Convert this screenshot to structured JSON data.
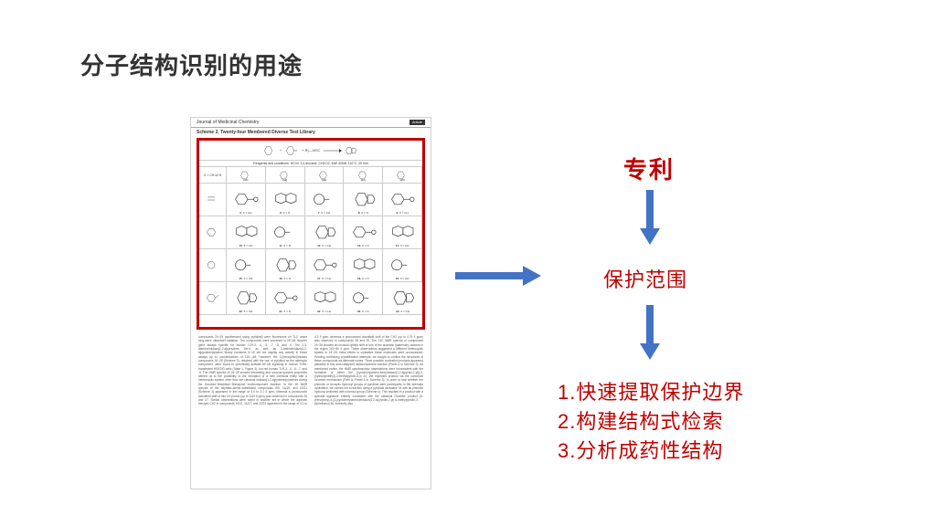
{
  "title": "分子结构识别的用途",
  "paper": {
    "journal": "Journal of Medicinal Chemistry",
    "scheme_title": "Scheme 2. Twenty-four Membered Diverse Test Library",
    "conditions": "Reagents and conditions: HCl in 1,4-dioxane, CH2Cl2, MW 400W, 110°C, 20 min",
    "highlight_border_color": "#c00000",
    "header_row_labels": [
      "",
      "[a1]",
      "[a2]",
      "[a3]",
      "[a4]",
      "[a5]"
    ],
    "row_count": 4,
    "col_count": 6,
    "filler_text": "compounds 24−28 (synthesized using pyridinal) were fluorescent on TLC under long-wave ultraviolet radiation. The compounds were screened in NF-κB reporter gene assays specific for human TLR-3, -4, -5, -7, -8, and -9. The 2,3-diaminoimidazo[1,2-a]pyrazines 5a−d as well as 5-aminoimidazo[1,2-a]pyridine/pyrazine library members 6−15 did not display any activity in these assays up to concentrations of 100 μM. However, the 2-(benzylthio)imidazo compounds 16−28 (Scheme 3), obtained with the use of pyridinal as the aldehyde component, were found to specifically activate NF-κB signaling in human TLR8-transfected HEK293 cells (Table 1, Figure 3), but not human TLR-3, -4, -5, -7, and -9. The NMR spectra of 16−28 showed interesting and unusual spectral properties alerted us to the possibility of the formation of a new chemical entity with a heterocyclic system other than the classical imidazo[1,2-a]pyridine/pyrazines during the Groebke−Blackburn−Bienaymé multicomponent reaction. In the 1H NMR spectra of the aliphatic-amine-substituted compounds 8/9, 14/15, and 20/21 (Scheme 2) appeared in the range of 3.0 to 3.1 δ ppm, whereas a pronounced downfield shift of this CH proton (up to 3.83 δ ppm) was observed in compounds 26 and 27. Similar observations were noted in another set in which the aliphatic benzylic CH2 in compounds 10/11, 16/17, and 22/23 appeared in the range of 4.2 to 4.3 δ ppm, whereas a pronounced downfield shift of the CH2 (up to 4.76 δ ppm) was observed in compounds 28 and 29. The 13C NMR spectra of compounds 24−28 showed an unusual upfield shift of one of the aromatic quaternary carbons in the region 100−80 δ ppm. These observations suggested a different heterocyclic system in 24−28. Initial efforts to crystallize these molecules were unsuccessful. Pending continuing crystallization attempts, we sought to confirm the structures of these compounds via alternate routes. Three possible cyclization products appeared plausible in this acid-catalyzed multicomponent reaction (Panel A in Scheme 3). As mentioned earlier, the NMR spectroscopic observations were inconsistent with the formation of either the [cyclohexylamino-furo(imidazo[1,2-a]pyrido-2-yl)]-3-(hydroxymethyl)-2-methylpyridin-3-ol 32, the expected product via the canonical Groebke mechanism (Path A, Panel A in Scheme 3). In order to test whether the phenolic or benzylic hydroxyl groups of pyridinal were participants in the alternate cyclization, we carried out a reaction using a pyridinal derivative 34 with its phenolic hydroxyl protected with a benzyl group (Scheme 4). This resulted in a product with a spectral signature entirely consistent with the classical Groebke product (5-(benzyloxy)-4-(3-(cyclohexylamino)imidazo[1,2-a]-pyridin-2-yl)-6-methylpyridin-3-yl)methanol 36, indirectly also"
  },
  "flow": {
    "arrow_color": "#4472c4",
    "patent_label": "专利",
    "scope_label": "保护范围",
    "list_items": [
      "1.快速提取保护边界",
      "2.构建结构式检索",
      "3.分析成药性结构"
    ]
  },
  "colors": {
    "title_color": "#333333",
    "accent_red": "#c00000",
    "arrow_blue": "#4472c4",
    "background": "#ffffff"
  }
}
